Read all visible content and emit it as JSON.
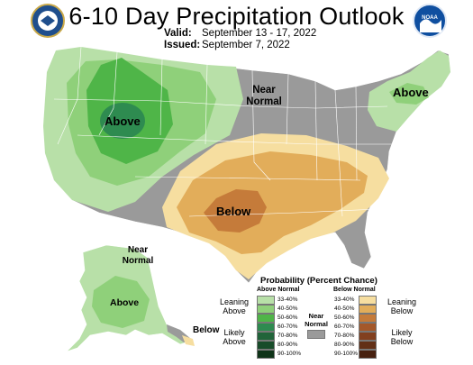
{
  "header": {
    "title": "6-10 Day Precipitation Outlook",
    "valid_label": "Valid:",
    "valid_value": "September 13 - 17, 2022",
    "issued_label": "Issued:",
    "issued_value": "September 7, 2022"
  },
  "logos": {
    "left": "department-seal",
    "right": "noaa-logo",
    "right_text": "NOAA"
  },
  "map_labels": {
    "above_west": "Above",
    "near_normal_center": "Near Normal",
    "above_northeast": "Above",
    "below_plains": "Below",
    "near_normal_alaska": "Near Normal",
    "above_alaska": "Above",
    "below_southeast_alaska": "Below"
  },
  "legend": {
    "title": "Probability (Percent Chance)",
    "above_header": "Above Normal",
    "below_header": "Below Normal",
    "near_normal_label": "Near Normal",
    "leaning_above": "Leaning Above",
    "likely_above": "Likely Above",
    "leaning_below": "Leaning Below",
    "likely_below": "Likely Below",
    "above_bins": [
      {
        "label": "33-40%",
        "color": "#b8e0a8"
      },
      {
        "label": "40-50%",
        "color": "#8fd07a"
      },
      {
        "label": "50-60%",
        "color": "#4fb548"
      },
      {
        "label": "60-70%",
        "color": "#2e8b50"
      },
      {
        "label": "70-80%",
        "color": "#21643a"
      },
      {
        "label": "80-90%",
        "color": "#184c2a"
      },
      {
        "label": "90-100%",
        "color": "#0e3318"
      }
    ],
    "below_bins": [
      {
        "label": "33-40%",
        "color": "#f6dea0"
      },
      {
        "label": "40-50%",
        "color": "#e2ad5a"
      },
      {
        "label": "50-60%",
        "color": "#c57b3a"
      },
      {
        "label": "60-70%",
        "color": "#a4582a"
      },
      {
        "label": "70-80%",
        "color": "#82401f"
      },
      {
        "label": "80-90%",
        "color": "#623017"
      },
      {
        "label": "90-100%",
        "color": "#46200f"
      }
    ],
    "near_normal_color": "#9a9a9a"
  }
}
